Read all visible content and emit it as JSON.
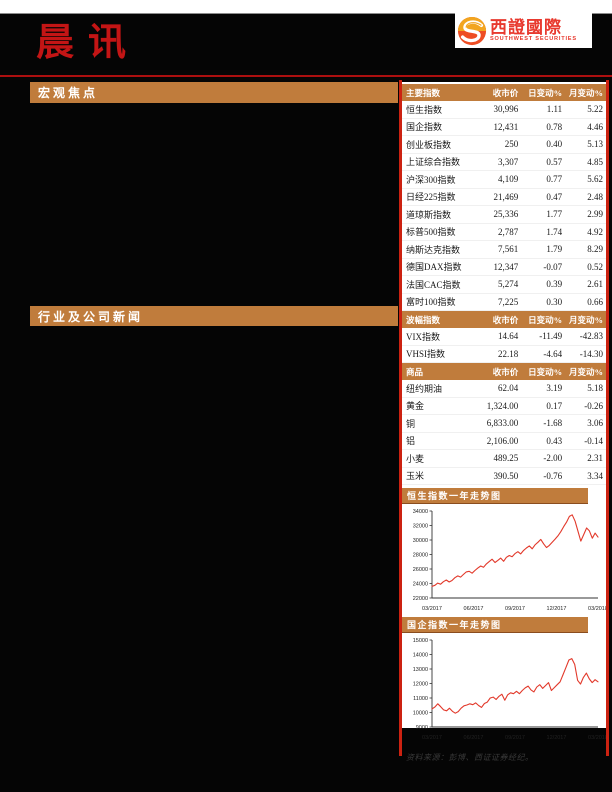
{
  "header": {
    "title": "晨讯",
    "logo": {
      "cn": "西證國際",
      "en": "SOUTHWEST SECURITIES",
      "accent": "#e8392e"
    }
  },
  "left_column": {
    "sections": [
      {
        "label": "宏观焦点"
      },
      {
        "label": "行业及公司新闻"
      }
    ]
  },
  "right_panel": {
    "col_headers": [
      "收市价",
      "日变动%",
      "月变动%"
    ],
    "sections": [
      {
        "title": "主要指数",
        "rows": [
          [
            "恒生指数",
            "30,996",
            "1.11",
            "5.22"
          ],
          [
            "国企指数",
            "12,431",
            "0.78",
            "4.46"
          ],
          [
            "创业板指数",
            "250",
            "0.40",
            "5.13"
          ],
          [
            "上证综合指数",
            "3,307",
            "0.57",
            "4.85"
          ],
          [
            "沪深300指数",
            "4,109",
            "0.77",
            "5.62"
          ],
          [
            "日经225指数",
            "21,469",
            "0.47",
            "2.48"
          ],
          [
            "道琼斯指数",
            "25,336",
            "1.77",
            "2.99"
          ],
          [
            "标普500指数",
            "2,787",
            "1.74",
            "4.92"
          ],
          [
            "纳斯达克指数",
            "7,561",
            "1.79",
            "8.29"
          ],
          [
            "德国DAX指数",
            "12,347",
            "-0.07",
            "0.52"
          ],
          [
            "法国CAC指数",
            "5,274",
            "0.39",
            "2.61"
          ],
          [
            "富时100指数",
            "7,225",
            "0.30",
            "0.66"
          ]
        ]
      },
      {
        "title": "波幅指数",
        "rows": [
          [
            "VIX指数",
            "14.64",
            "-11.49",
            "-42.83"
          ],
          [
            "VHSI指数",
            "22.18",
            "-4.64",
            "-14.30"
          ]
        ]
      },
      {
        "title": "商品",
        "rows": [
          [
            "纽约期油",
            "62.04",
            "3.19",
            "5.18"
          ],
          [
            "黄金",
            "1,324.00",
            "0.17",
            "-0.26"
          ],
          [
            "铜",
            "6,833.00",
            "-1.68",
            "3.06"
          ],
          [
            "铝",
            "2,106.00",
            "0.43",
            "-0.14"
          ],
          [
            "小麦",
            "489.25",
            "-2.00",
            "2.31"
          ],
          [
            "玉米",
            "390.50",
            "-0.76",
            "3.34"
          ]
        ]
      }
    ],
    "source_note": "资料来源：彭博、西证证券经纪。"
  },
  "chart_data": [
    {
      "type": "line",
      "title": "恒生指数一年走势图",
      "x_labels": [
        "03/2017",
        "06/2017",
        "09/2017",
        "12/2017",
        "03/2018"
      ],
      "ylim": [
        22000,
        34000
      ],
      "yticks": [
        22000,
        24000,
        26000,
        28000,
        30000,
        32000,
        34000
      ],
      "grid": false,
      "legend": "none",
      "series": [
        {
          "name": "恒生指数",
          "color": "#e2392b",
          "values": [
            23600,
            23750,
            24050,
            23900,
            24250,
            24480,
            24200,
            24420,
            24800,
            25050,
            24880,
            25250,
            25600,
            25680,
            25420,
            25800,
            26120,
            26420,
            26230,
            26700,
            27020,
            27350,
            26900,
            27180,
            27500,
            27060,
            27620,
            27860,
            27700,
            28120,
            28380,
            28080,
            28560,
            28900,
            29180,
            28780,
            29320,
            29680,
            30080,
            29480,
            28950,
            29250,
            29700,
            30120,
            30560,
            31150,
            31850,
            32450,
            33250,
            33480,
            32600,
            31200,
            29850,
            30750,
            31650,
            31250,
            30250,
            30950,
            30400
          ]
        }
      ]
    },
    {
      "type": "line",
      "title": "国企指数一年走势图",
      "x_labels": [
        "03/2017",
        "06/2017",
        "09/2017",
        "12/2017",
        "03/2018"
      ],
      "ylim": [
        9000,
        15000
      ],
      "yticks": [
        9000,
        10000,
        11000,
        12000,
        13000,
        14000,
        15000
      ],
      "grid": false,
      "legend": "none",
      "series": [
        {
          "name": "国企指数",
          "color": "#e2392b",
          "values": [
            10250,
            10380,
            10600,
            10400,
            10180,
            10120,
            10300,
            10080,
            9950,
            10060,
            10300,
            10460,
            10520,
            10600,
            10540,
            10660,
            10480,
            10350,
            10620,
            10720,
            11000,
            11060,
            10900,
            11120,
            11260,
            10850,
            11220,
            11360,
            11300,
            11460,
            11300,
            11520,
            11700,
            11820,
            11560,
            11420,
            11760,
            11920,
            11660,
            11860,
            12060,
            11520,
            11720,
            11920,
            12120,
            12620,
            13120,
            13620,
            13720,
            13320,
            12220,
            11960,
            12420,
            12720,
            12320,
            12060,
            12260,
            12120
          ]
        }
      ]
    }
  ],
  "colors": {
    "bar_orange": "#c07c3c",
    "title_red": "#c31515",
    "rule_red": "#ad0f0f",
    "border_red": "#cc2211",
    "chart_line_red": "#e2392b"
  }
}
